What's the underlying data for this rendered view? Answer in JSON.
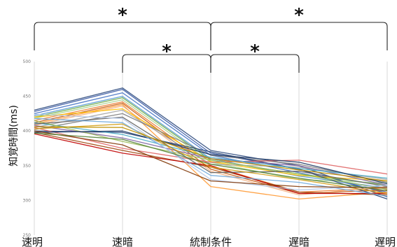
{
  "chart_data": {
    "type": "line",
    "categories": [
      "速明",
      "速暗",
      "統制条件",
      "遅暗",
      "遅明"
    ],
    "ylabel": "知覚時間(ms)",
    "ylim": [
      250,
      500
    ],
    "yticks": [
      250,
      300,
      350,
      400,
      450,
      500
    ],
    "grid": {
      "vertical": true,
      "horizontal": false
    },
    "legend": "none",
    "significance": [
      {
        "from": "速明",
        "to": "統制条件",
        "label": "*"
      },
      {
        "from": "統制条件",
        "to": "遅明",
        "label": "*"
      },
      {
        "from": "速暗",
        "to": "統制条件",
        "label": "*"
      },
      {
        "from": "統制条件",
        "to": "遅暗",
        "label": "*"
      }
    ],
    "series": [
      {
        "color": "#2e4a7d",
        "values": [
          430,
          462,
          372,
          350,
          305
        ]
      },
      {
        "color": "#3b5ba5",
        "values": [
          428,
          460,
          368,
          345,
          310
        ]
      },
      {
        "color": "#4472c4",
        "values": [
          425,
          455,
          365,
          340,
          312
        ]
      },
      {
        "color": "#5b9bd5",
        "values": [
          422,
          450,
          360,
          335,
          318
        ]
      },
      {
        "color": "#70ad47",
        "values": [
          420,
          448,
          358,
          338,
          322
        ]
      },
      {
        "color": "#a9d18e",
        "values": [
          418,
          445,
          355,
          330,
          325
        ]
      },
      {
        "color": "#ed7d31",
        "values": [
          415,
          442,
          350,
          312,
          318
        ]
      },
      {
        "color": "#c55a11",
        "values": [
          412,
          440,
          345,
          310,
          315
        ]
      },
      {
        "color": "#ff9933",
        "values": [
          410,
          438,
          320,
          302,
          312
        ]
      },
      {
        "color": "#f4b183",
        "values": [
          408,
          436,
          342,
          308,
          320
        ]
      },
      {
        "color": "#ffc000",
        "values": [
          420,
          432,
          356,
          336,
          328
        ]
      },
      {
        "color": "#a5a5a5",
        "values": [
          405,
          430,
          352,
          348,
          330
        ]
      },
      {
        "color": "#7f7f7f",
        "values": [
          402,
          425,
          365,
          352,
          326
        ]
      },
      {
        "color": "#264478",
        "values": [
          400,
          398,
          370,
          345,
          302
        ]
      },
      {
        "color": "#9e480e",
        "values": [
          398,
          372,
          348,
          312,
          308
        ]
      },
      {
        "color": "#c00000",
        "values": [
          396,
          368,
          350,
          310,
          310
        ]
      },
      {
        "color": "#e06666",
        "values": [
          405,
          375,
          355,
          358,
          338
        ]
      },
      {
        "color": "#8064a2",
        "values": [
          408,
          390,
          360,
          350,
          322
        ]
      },
      {
        "color": "#4bacc6",
        "values": [
          412,
          395,
          362,
          346,
          332
        ]
      },
      {
        "color": "#9bbb59",
        "values": [
          415,
          385,
          358,
          338,
          316
        ]
      },
      {
        "color": "#1f3864",
        "values": [
          398,
          400,
          366,
          355,
          324
        ]
      },
      {
        "color": "#636363",
        "values": [
          410,
          420,
          340,
          342,
          320
        ]
      },
      {
        "color": "#d4a017",
        "values": [
          403,
          410,
          348,
          330,
          310
        ]
      },
      {
        "color": "#6fa8dc",
        "values": [
          418,
          412,
          336,
          326,
          306
        ]
      },
      {
        "color": "#b4c7e7",
        "values": [
          424,
          418,
          330,
          315,
          322
        ]
      },
      {
        "color": "#843c0c",
        "values": [
          400,
          380,
          328,
          320,
          318
        ]
      },
      {
        "color": "#548235",
        "values": [
          397,
          388,
          352,
          332,
          314
        ]
      },
      {
        "color": "#bf9000",
        "values": [
          406,
          405,
          360,
          344,
          328
        ]
      }
    ]
  }
}
